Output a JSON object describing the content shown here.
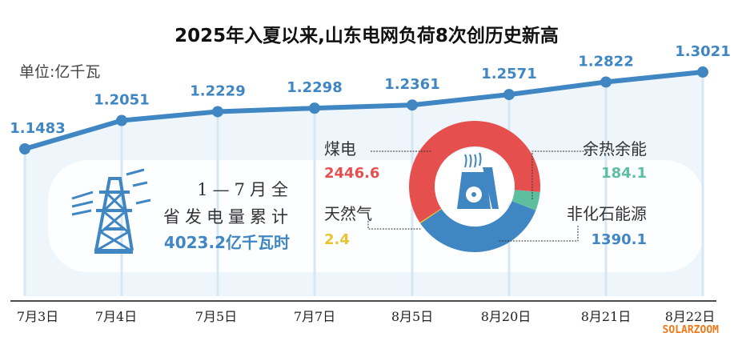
{
  "chart_data": [
    {
      "type": "line",
      "title": "2025年入夏以来,山东电网负荷8次创历史新高",
      "unit_label": "单位:亿千瓦",
      "categories": [
        "7月3日",
        "7月4日",
        "7月5日",
        "7月7日",
        "8月5日",
        "8月20日",
        "8月21日",
        "8月22日"
      ],
      "values": [
        1.1483,
        1.2051,
        1.2229,
        1.2298,
        1.2361,
        1.2571,
        1.2822,
        1.3021
      ],
      "value_labels": [
        "1.1483",
        "1.2051",
        "1.2229",
        "1.2298",
        "1.2361",
        "1.2571",
        "1.2822",
        "1.3021"
      ],
      "color": "#3f86c2"
    },
    {
      "type": "pie",
      "donut": true,
      "total_label": {
        "line1": "1—7月全",
        "line2": "省发电量累计",
        "line3": "4023.2亿千瓦时"
      },
      "slices": [
        {
          "name": "煤电",
          "value": 2446.6,
          "label": "2446.6",
          "color": "#e5504f"
        },
        {
          "name": "余热余能",
          "value": 184.1,
          "label": "184.1",
          "color": "#5dbf9e"
        },
        {
          "name": "非化石能源",
          "value": 1390.1,
          "label": "1390.1",
          "color": "#3f86c2"
        },
        {
          "name": "天然气",
          "value": 2.4,
          "label": "2.4",
          "color": "#e8c430"
        }
      ]
    }
  ],
  "icons": {
    "tower": "power-tower-icon",
    "plant": "nuclear-plant-icon"
  },
  "watermark": "SOLARZOOM"
}
